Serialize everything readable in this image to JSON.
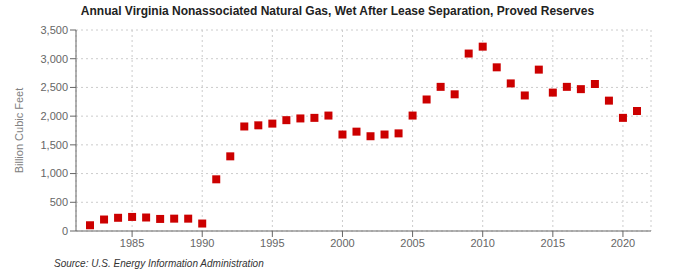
{
  "chart_data": {
    "type": "scatter",
    "title": "Annual Virginia Nonassociated Natural Gas, Wet After Lease Separation, Proved Reserves",
    "y_label": "Billion Cubic Feet",
    "annotations": [
      "Source: U.S. Energy Information Administration"
    ],
    "x": [
      1982,
      1983,
      1984,
      1985,
      1986,
      1987,
      1988,
      1989,
      1990,
      1991,
      1992,
      1993,
      1994,
      1995,
      1996,
      1997,
      1998,
      1999,
      2000,
      2001,
      2002,
      2003,
      2004,
      2005,
      2006,
      2007,
      2008,
      2009,
      2010,
      2011,
      2012,
      2013,
      2014,
      2015,
      2016,
      2017,
      2018,
      2019,
      2020,
      2021
    ],
    "values": [
      100,
      200,
      230,
      245,
      235,
      210,
      215,
      215,
      130,
      900,
      1300,
      1820,
      1840,
      1870,
      1930,
      1960,
      1970,
      2010,
      1680,
      1730,
      1650,
      1680,
      1700,
      2010,
      2290,
      2510,
      2380,
      3090,
      3210,
      2850,
      2570,
      2360,
      2810,
      2410,
      2510,
      2470,
      2560,
      2270,
      1970,
      2090
    ],
    "color": "#cc0000",
    "marker": "square",
    "xlim": [
      1981,
      2022
    ],
    "xticks": [
      1985,
      1990,
      1995,
      2000,
      2005,
      2010,
      2015,
      2020
    ],
    "ylim": [
      0,
      3500
    ],
    "yticks": [
      0,
      500,
      {
        "value": 1000,
        "label": "1,000"
      },
      {
        "value": 1500,
        "label": "1,500"
      },
      {
        "value": 2000,
        "label": "2,000"
      },
      {
        "value": 2500,
        "label": "2,500"
      },
      {
        "value": 3000,
        "label": "3,000"
      },
      {
        "value": 3500,
        "label": "3,500"
      }
    ],
    "grid": true
  }
}
